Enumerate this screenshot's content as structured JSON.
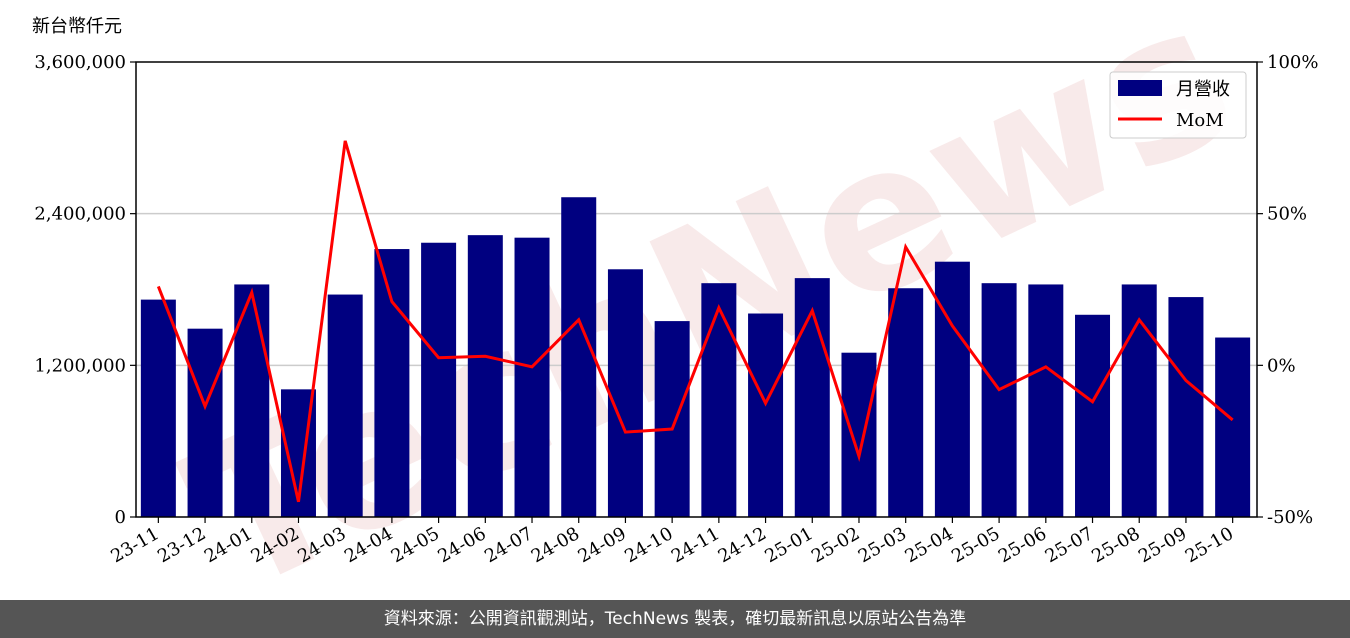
{
  "watermark": "TechNews",
  "footer": "資料來源：公開資訊觀測站，TechNews 製表，確切最新訊息以原站公告為準",
  "chart_data": {
    "type": "bar",
    "unit_label": "新台幣仟元",
    "categories": [
      "23-11",
      "23-12",
      "24-01",
      "24-02",
      "24-03",
      "24-04",
      "24-05",
      "24-06",
      "24-07",
      "24-08",
      "24-09",
      "24-10",
      "24-11",
      "24-12",
      "25-01",
      "25-02",
      "25-03",
      "25-04",
      "25-05",
      "25-06",
      "25-07",
      "25-08",
      "25-09",
      "25-10"
    ],
    "series": [
      {
        "name": "月營收",
        "type": "bar",
        "axis": "left",
        "color": "#000080",
        "values": [
          1720000,
          1490000,
          1840000,
          1010000,
          1760000,
          2120000,
          2170000,
          2230000,
          2210000,
          2530000,
          1960000,
          1550000,
          1850000,
          1610000,
          1890000,
          1300000,
          1810000,
          2020000,
          1850000,
          1840000,
          1600000,
          1840000,
          1740000,
          1420000
        ]
      },
      {
        "name": "MoM",
        "type": "line",
        "axis": "right",
        "color": "#ff0000",
        "values": [
          26,
          -13.5,
          24,
          -45,
          74,
          21,
          2.5,
          3,
          -0.5,
          15,
          -22,
          -21,
          19,
          -12.5,
          18,
          -30,
          39,
          13,
          -8,
          -0.5,
          -12,
          15,
          -5,
          -18
        ]
      }
    ],
    "y_left": {
      "min": 0,
      "max": 3600000,
      "ticks": [
        "0",
        "1,200,000",
        "2,400,000",
        "3,600,000"
      ],
      "tick_values": [
        0,
        1200000,
        2400000,
        3600000
      ]
    },
    "y_right": {
      "min": -50,
      "max": 100,
      "ticks": [
        "-50%",
        "0%",
        "50%",
        "100%"
      ],
      "tick_values": [
        -50,
        0,
        50,
        100
      ]
    },
    "grid": true,
    "legend": "top-right"
  }
}
